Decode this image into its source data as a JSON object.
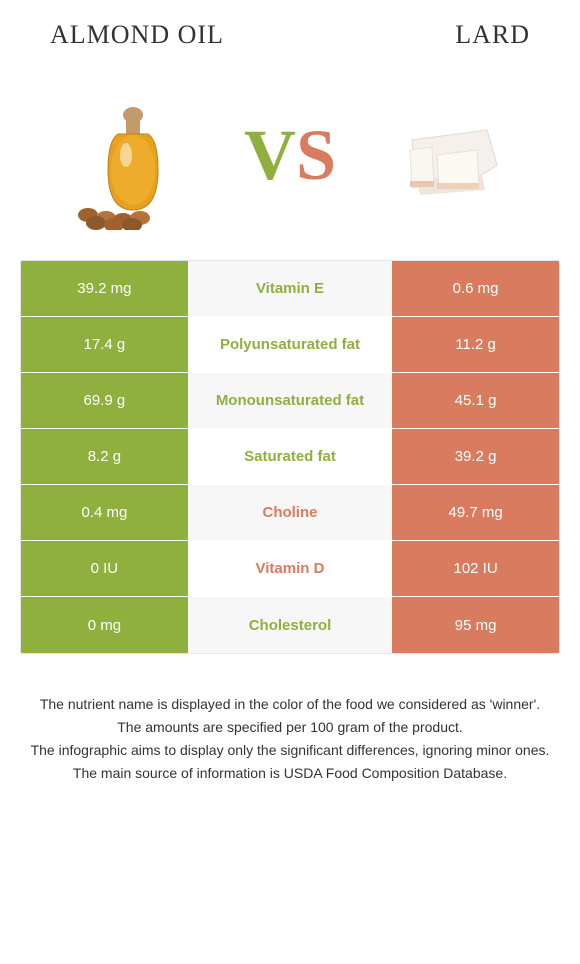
{
  "header": {
    "left_title": "Almond oil",
    "right_title": "Lard"
  },
  "hero": {
    "vs_v": "V",
    "vs_s": "S"
  },
  "colors": {
    "left_food": "#8fb03e",
    "right_food": "#d97b5e",
    "left_cell_bg": "#8fb03e",
    "right_cell_bg": "#d97b5e",
    "cell_text": "#ffffff",
    "row_stripe_odd": "#f7f7f7",
    "row_stripe_even": "#ffffff"
  },
  "rows": [
    {
      "left": "39.2 mg",
      "label": "Vitamin E",
      "right": "0.6 mg",
      "winner": "left"
    },
    {
      "left": "17.4 g",
      "label": "Polyunsaturated fat",
      "right": "11.2 g",
      "winner": "left"
    },
    {
      "left": "69.9 g",
      "label": "Monounsaturated fat",
      "right": "45.1 g",
      "winner": "left"
    },
    {
      "left": "8.2 g",
      "label": "Saturated fat",
      "right": "39.2 g",
      "winner": "left"
    },
    {
      "left": "0.4 mg",
      "label": "Choline",
      "right": "49.7 mg",
      "winner": "right"
    },
    {
      "left": "0 IU",
      "label": "Vitamin D",
      "right": "102 IU",
      "winner": "right"
    },
    {
      "left": "0 mg",
      "label": "Cholesterol",
      "right": "95 mg",
      "winner": "left"
    }
  ],
  "footer": {
    "line1": "The nutrient name is displayed in the color of the food we considered as 'winner'.",
    "line2": "The amounts are specified per 100 gram of the product.",
    "line3": "The infographic aims to display only the significant differences, ignoring minor ones.",
    "line4": "The main source of information is USDA Food Composition Database."
  }
}
